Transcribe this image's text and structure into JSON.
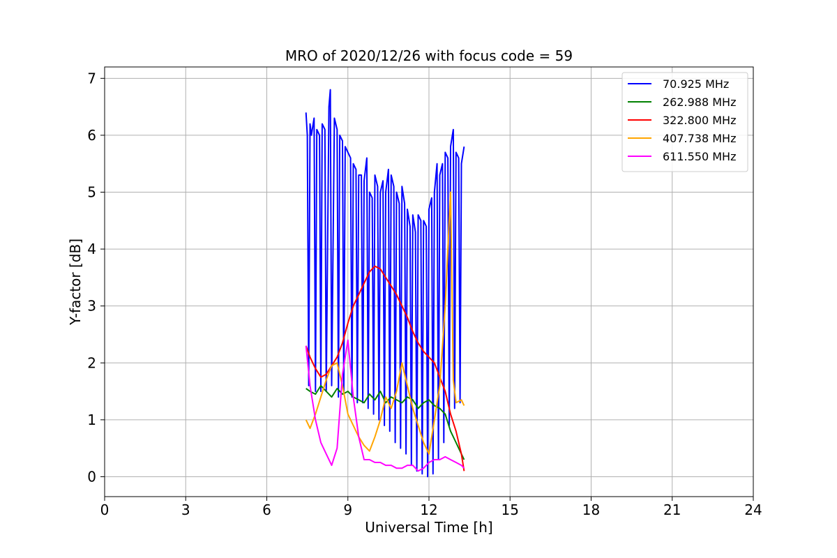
{
  "chart_data": {
    "type": "line",
    "title": "MRO of 2020/12/26 with focus code = 59",
    "xlabel": "Universal Time [h]",
    "ylabel": "Y-factor [dB]",
    "xlim": [
      0,
      24
    ],
    "ylim": [
      -0.35,
      7.2
    ],
    "xticks": [
      0,
      3,
      6,
      9,
      12,
      15,
      18,
      21,
      24
    ],
    "yticks": [
      0,
      1,
      2,
      3,
      4,
      5,
      6,
      7
    ],
    "grid": true,
    "legend_position": "top-right",
    "series": [
      {
        "name": " 70.925 MHz",
        "color": "#0000ff",
        "x": [
          7.45,
          7.5,
          7.55,
          7.6,
          7.65,
          7.75,
          7.8,
          7.85,
          7.95,
          8.0,
          8.05,
          8.15,
          8.2,
          8.3,
          8.35,
          8.4,
          8.5,
          8.6,
          8.65,
          8.7,
          8.8,
          8.85,
          8.9,
          9.0,
          9.1,
          9.15,
          9.2,
          9.3,
          9.35,
          9.4,
          9.5,
          9.55,
          9.6,
          9.7,
          9.75,
          9.8,
          9.9,
          9.95,
          10.0,
          10.1,
          10.15,
          10.2,
          10.3,
          10.35,
          10.4,
          10.5,
          10.55,
          10.6,
          10.7,
          10.75,
          10.8,
          10.9,
          10.95,
          11.0,
          11.1,
          11.15,
          11.2,
          11.3,
          11.35,
          11.4,
          11.5,
          11.55,
          11.6,
          11.7,
          11.75,
          11.8,
          11.9,
          11.95,
          12.0,
          12.1,
          12.15,
          12.2,
          12.3,
          12.35,
          12.4,
          12.5,
          12.55,
          12.6,
          12.7,
          12.75,
          12.8,
          12.9,
          12.95,
          13.0,
          13.1,
          13.15,
          13.2,
          13.3
        ],
        "y": [
          6.4,
          6.0,
          1.6,
          6.2,
          6.0,
          6.3,
          1.5,
          6.1,
          6.0,
          1.5,
          6.2,
          6.1,
          1.5,
          6.5,
          6.8,
          1.6,
          6.3,
          6.1,
          1.4,
          6.0,
          5.9,
          1.5,
          5.8,
          5.7,
          5.6,
          1.4,
          5.5,
          5.4,
          1.3,
          5.3,
          5.3,
          1.3,
          5.2,
          5.6,
          1.2,
          5.0,
          4.9,
          1.1,
          5.3,
          5.1,
          1.0,
          5.0,
          5.2,
          0.9,
          5.0,
          5.4,
          0.8,
          5.3,
          5.1,
          0.6,
          5.0,
          4.8,
          0.5,
          5.1,
          4.8,
          0.4,
          4.7,
          4.4,
          0.2,
          4.6,
          4.3,
          0.1,
          4.6,
          4.5,
          0.05,
          4.5,
          4.4,
          0.0,
          4.7,
          4.9,
          0.05,
          5.0,
          5.5,
          0.3,
          5.3,
          5.5,
          0.6,
          5.7,
          5.6,
          0.9,
          5.8,
          6.1,
          1.2,
          5.7,
          5.6,
          1.3,
          5.5,
          5.8
        ]
      },
      {
        "name": "262.988 MHz",
        "color": "#008000",
        "x": [
          7.45,
          7.6,
          7.8,
          8.0,
          8.2,
          8.4,
          8.6,
          8.8,
          9.0,
          9.2,
          9.4,
          9.6,
          9.8,
          10.0,
          10.2,
          10.4,
          10.6,
          10.8,
          11.0,
          11.2,
          11.4,
          11.6,
          11.8,
          12.0,
          12.2,
          12.4,
          12.6,
          12.8,
          13.0,
          13.2,
          13.3
        ],
        "y": [
          1.55,
          1.5,
          1.45,
          1.6,
          1.5,
          1.4,
          1.55,
          1.45,
          1.5,
          1.4,
          1.35,
          1.3,
          1.45,
          1.35,
          1.5,
          1.3,
          1.4,
          1.35,
          1.3,
          1.4,
          1.35,
          1.2,
          1.3,
          1.35,
          1.25,
          1.2,
          1.1,
          0.8,
          0.6,
          0.4,
          0.3
        ]
      },
      {
        "name": "322.800 MHz",
        "color": "#ff0000",
        "x": [
          7.45,
          7.6,
          7.8,
          8.0,
          8.2,
          8.4,
          8.6,
          8.8,
          9.0,
          9.2,
          9.4,
          9.6,
          9.8,
          10.0,
          10.2,
          10.4,
          10.6,
          10.8,
          11.0,
          11.2,
          11.4,
          11.6,
          11.8,
          12.0,
          12.2,
          12.4,
          12.6,
          12.8,
          13.0,
          13.2,
          13.3
        ],
        "y": [
          2.3,
          2.1,
          1.9,
          1.75,
          1.8,
          1.95,
          2.1,
          2.35,
          2.7,
          3.0,
          3.2,
          3.4,
          3.6,
          3.7,
          3.65,
          3.5,
          3.35,
          3.2,
          3.0,
          2.8,
          2.55,
          2.35,
          2.2,
          2.1,
          2.0,
          1.75,
          1.5,
          1.1,
          0.8,
          0.4,
          0.1
        ]
      },
      {
        "name": "407.738 MHz",
        "color": "#ffa500",
        "x": [
          7.45,
          7.6,
          7.8,
          8.0,
          8.2,
          8.4,
          8.6,
          8.8,
          9.0,
          9.2,
          9.4,
          9.6,
          9.8,
          10.0,
          10.2,
          10.4,
          10.6,
          10.8,
          11.0,
          11.2,
          11.4,
          11.6,
          11.8,
          12.0,
          12.2,
          12.4,
          12.6,
          12.7,
          12.8,
          12.9,
          13.0,
          13.2,
          13.3
        ],
        "y": [
          1.0,
          0.85,
          1.1,
          1.4,
          1.7,
          1.95,
          2.0,
          1.6,
          1.1,
          0.9,
          0.7,
          0.55,
          0.45,
          0.7,
          1.0,
          1.4,
          1.2,
          1.5,
          2.0,
          1.6,
          1.2,
          0.9,
          0.6,
          0.4,
          1.0,
          1.6,
          3.0,
          4.0,
          5.0,
          1.7,
          1.3,
          1.35,
          1.25
        ]
      },
      {
        "name": "611.550 MHz",
        "color": "#ff00ff",
        "x": [
          7.45,
          7.6,
          7.8,
          8.0,
          8.2,
          8.4,
          8.6,
          8.8,
          9.0,
          9.2,
          9.4,
          9.6,
          9.8,
          10.0,
          10.2,
          10.4,
          10.6,
          10.8,
          11.0,
          11.2,
          11.4,
          11.6,
          11.8,
          12.0,
          12.2,
          12.4,
          12.6,
          12.8,
          13.0,
          13.2,
          13.3
        ],
        "y": [
          2.3,
          1.6,
          1.0,
          0.6,
          0.4,
          0.2,
          0.5,
          1.8,
          2.4,
          1.4,
          0.7,
          0.3,
          0.3,
          0.25,
          0.25,
          0.2,
          0.2,
          0.15,
          0.15,
          0.2,
          0.2,
          0.1,
          0.15,
          0.25,
          0.3,
          0.3,
          0.35,
          0.3,
          0.25,
          0.2,
          0.15
        ]
      }
    ]
  }
}
